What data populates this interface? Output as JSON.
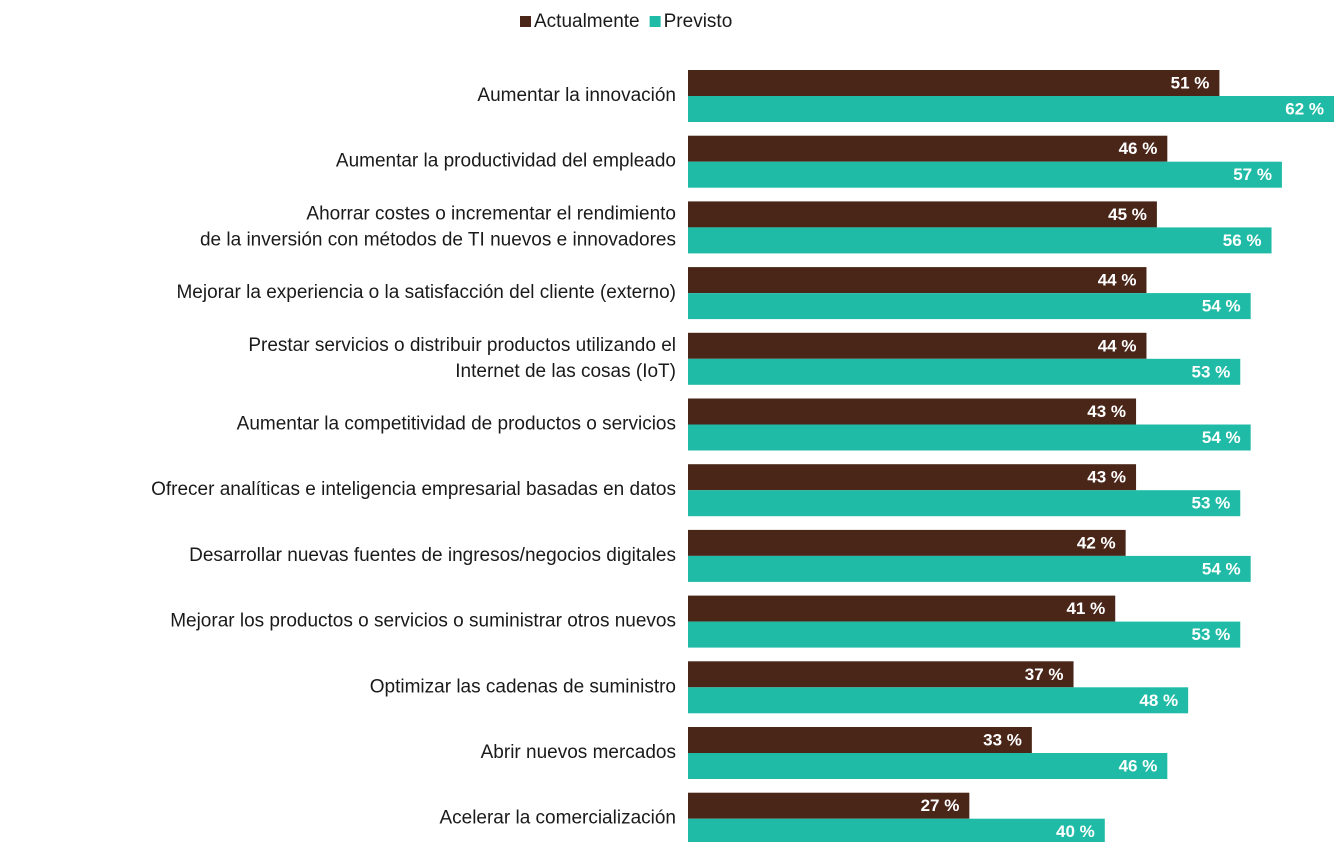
{
  "chart_data": {
    "type": "bar",
    "orientation": "horizontal",
    "categories": [
      "Aumentar la innovación",
      "Aumentar la productividad del empleado",
      "Ahorrar costes o incrementar el rendimiento\nde la inversión con métodos de TI nuevos e innovadores",
      "Mejorar la experiencia o la satisfacción del cliente (externo)",
      "Prestar servicios o distribuir productos utilizando el\nInternet de las cosas (IoT)",
      "Aumentar la competitividad de productos o servicios",
      "Ofrecer analíticas e inteligencia empresarial basadas en datos",
      "Desarrollar nuevas fuentes de ingresos/negocios digitales",
      "Mejorar los productos o servicios o suministrar otros nuevos",
      "Optimizar las cadenas de suministro",
      "Abrir nuevos mercados",
      "Acelerar la comercialización"
    ],
    "series": [
      {
        "name": "Actualmente",
        "color": "#4a2619",
        "values": [
          51,
          46,
          45,
          44,
          44,
          43,
          43,
          42,
          41,
          37,
          33,
          27
        ],
        "value_labels": [
          "51 %",
          "46 %",
          "45 %",
          "44 %",
          "44 %",
          "43 %",
          "43 %",
          "42 %",
          "41 %",
          "37 %",
          "33 %",
          "27 %"
        ]
      },
      {
        "name": "Previsto",
        "color": "#1fbba6",
        "values": [
          62,
          57,
          56,
          54,
          53,
          54,
          53,
          54,
          53,
          48,
          46,
          40
        ],
        "value_labels": [
          "62 %",
          "57 %",
          "56 %",
          "54 %",
          "53 %",
          "54 %",
          "53 %",
          "54 %",
          "53 %",
          "48 %",
          "46 %",
          "40 %"
        ]
      }
    ],
    "legend": "top"
  }
}
